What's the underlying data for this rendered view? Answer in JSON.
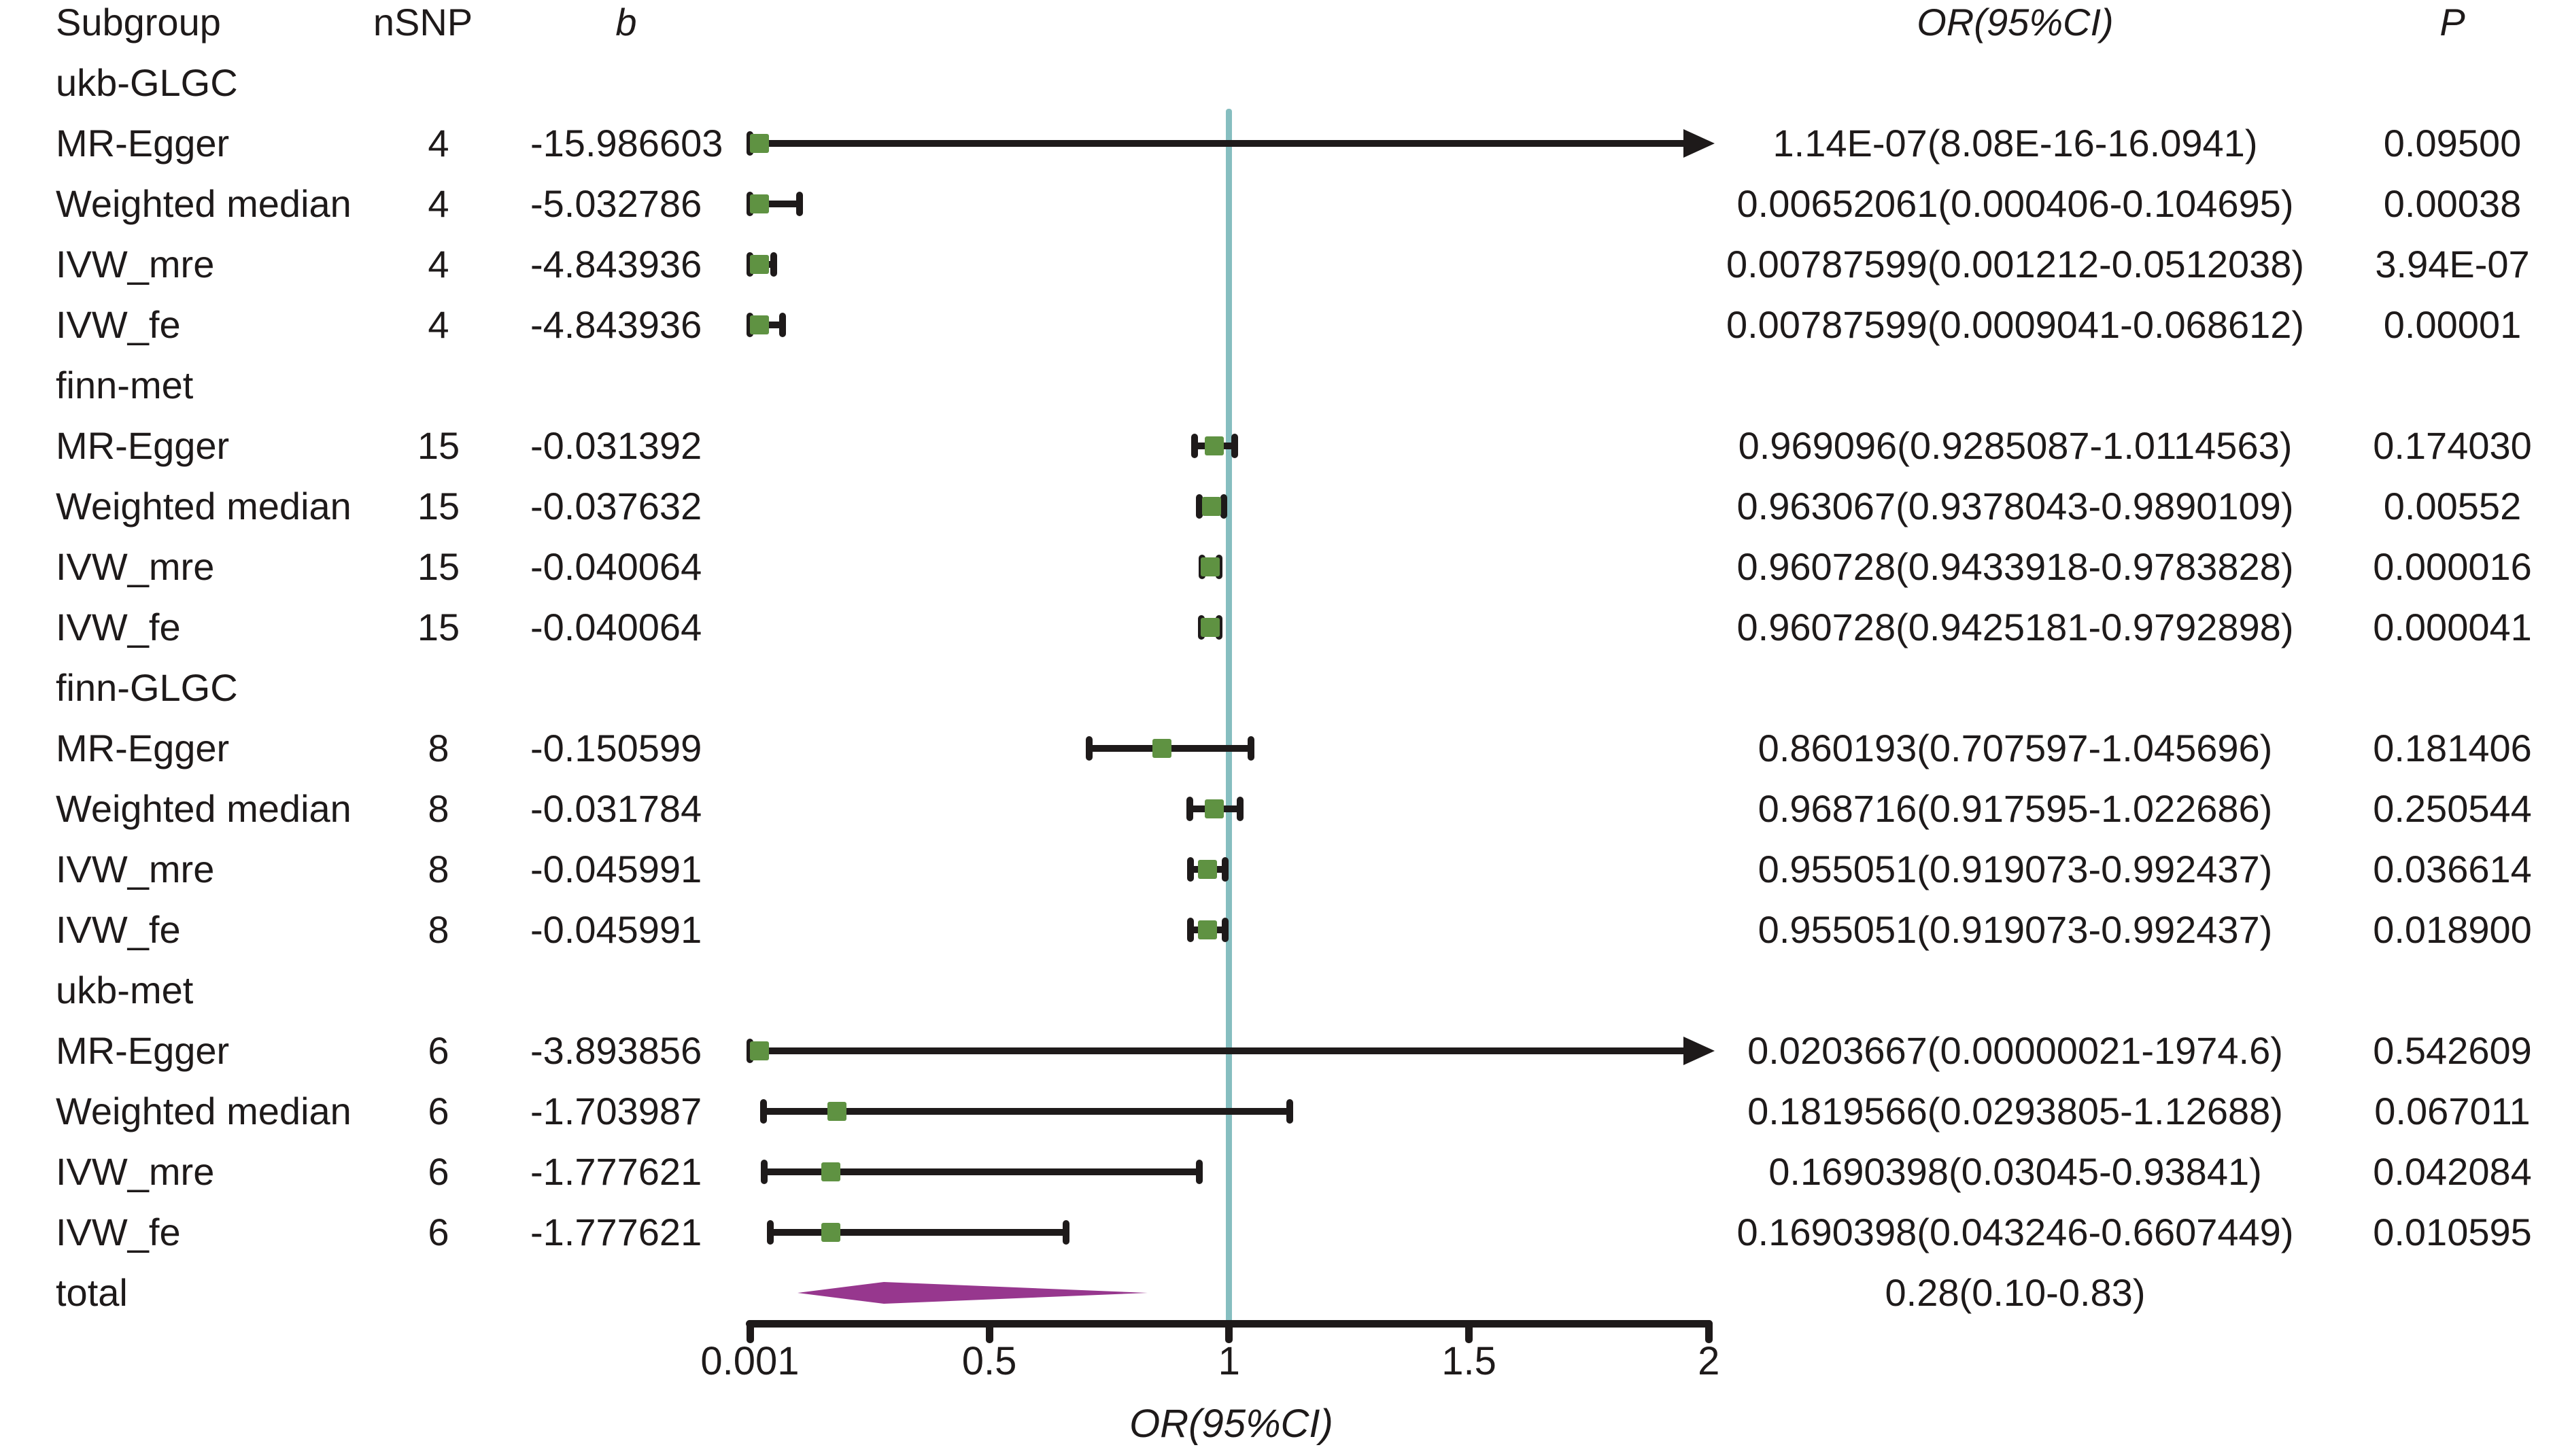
{
  "header": {
    "subgroup": "Subgroup",
    "nsnp": "nSNP",
    "b": "b",
    "or_ci": "OR(95%CI)",
    "p": "P"
  },
  "colors": {
    "text": "#1e1a1a",
    "line": "#1e1a1a",
    "marker_green": "#5f9242",
    "reference_teal": "#86bec0",
    "diamond_purple": "#97378e",
    "background": "#ffffff"
  },
  "chart_data": {
    "type": "scatter",
    "variant": "forest-plot",
    "title": "",
    "xlabel": "OR(95%CI)",
    "x_range": [
      0.001,
      2
    ],
    "x_ticks": [
      {
        "value": 0.001,
        "label": "0.001"
      },
      {
        "value": 0.5,
        "label": "0.5"
      },
      {
        "value": 1,
        "label": "1"
      },
      {
        "value": 1.5,
        "label": "1.5"
      },
      {
        "value": 2,
        "label": "2"
      }
    ],
    "reference_line_x": 1,
    "grid": false,
    "legend": false,
    "rows": [
      {
        "kind": "group",
        "label": "ukb-GLGC"
      },
      {
        "kind": "row",
        "label": "MR-Egger",
        "nsnp": "4",
        "b": "-15.986603",
        "or_ci": "1.14E-07(8.08E-16-16.0941)",
        "p": "0.09500",
        "est": 1.14e-07,
        "lo": 8.08e-16,
        "hi": 16.0941
      },
      {
        "kind": "row",
        "label": "Weighted median",
        "nsnp": "4",
        "b": "-5.032786",
        "or_ci": "0.00652061(0.000406-0.104695)",
        "p": "0.00038",
        "est": 0.00652061,
        "lo": 0.000406,
        "hi": 0.104695
      },
      {
        "kind": "row",
        "label": "IVW_mre",
        "nsnp": "4",
        "b": "-4.843936",
        "or_ci": "0.00787599(0.001212-0.0512038)",
        "p": "3.94E-07",
        "est": 0.00787599,
        "lo": 0.001212,
        "hi": 0.0512038
      },
      {
        "kind": "row",
        "label": "IVW_fe",
        "nsnp": "4",
        "b": "-4.843936",
        "or_ci": "0.00787599(0.0009041-0.068612)",
        "p": "0.00001",
        "est": 0.00787599,
        "lo": 0.0009041,
        "hi": 0.068612
      },
      {
        "kind": "group",
        "label": "finn-met"
      },
      {
        "kind": "row",
        "label": "MR-Egger",
        "nsnp": "15",
        "b": "-0.031392",
        "or_ci": "0.969096(0.9285087-1.0114563)",
        "p": "0.174030",
        "est": 0.969096,
        "lo": 0.9285087,
        "hi": 1.0114563
      },
      {
        "kind": "row",
        "label": "Weighted median",
        "nsnp": "15",
        "b": "-0.037632",
        "or_ci": "0.963067(0.9378043-0.9890109)",
        "p": "0.00552",
        "est": 0.963067,
        "lo": 0.9378043,
        "hi": 0.9890109
      },
      {
        "kind": "row",
        "label": "IVW_mre",
        "nsnp": "15",
        "b": "-0.040064",
        "or_ci": "0.960728(0.9433918-0.9783828)",
        "p": "0.000016",
        "est": 0.960728,
        "lo": 0.9433918,
        "hi": 0.9783828
      },
      {
        "kind": "row",
        "label": "IVW_fe",
        "nsnp": "15",
        "b": "-0.040064",
        "or_ci": "0.960728(0.9425181-0.9792898)",
        "p": "0.000041",
        "est": 0.960728,
        "lo": 0.9425181,
        "hi": 0.9792898
      },
      {
        "kind": "group",
        "label": "finn-GLGC"
      },
      {
        "kind": "row",
        "label": "MR-Egger",
        "nsnp": "8",
        "b": "-0.150599",
        "or_ci": "0.860193(0.707597-1.045696)",
        "p": "0.181406",
        "est": 0.860193,
        "lo": 0.707597,
        "hi": 1.045696
      },
      {
        "kind": "row",
        "label": "Weighted median",
        "nsnp": "8",
        "b": "-0.031784",
        "or_ci": "0.968716(0.917595-1.022686)",
        "p": "0.250544",
        "est": 0.968716,
        "lo": 0.917595,
        "hi": 1.022686
      },
      {
        "kind": "row",
        "label": "IVW_mre",
        "nsnp": "8",
        "b": "-0.045991",
        "or_ci": "0.955051(0.919073-0.992437)",
        "p": "0.036614",
        "est": 0.955051,
        "lo": 0.919073,
        "hi": 0.992437
      },
      {
        "kind": "row",
        "label": "IVW_fe",
        "nsnp": "8",
        "b": "-0.045991",
        "or_ci": "0.955051(0.919073-0.992437)",
        "p": "0.018900",
        "est": 0.955051,
        "lo": 0.919073,
        "hi": 0.992437
      },
      {
        "kind": "group",
        "label": "ukb-met"
      },
      {
        "kind": "row",
        "label": "MR-Egger",
        "nsnp": "6",
        "b": "-3.893856",
        "or_ci": "0.0203667(0.00000021-1974.6)",
        "p": "0.542609",
        "est": 0.0203667,
        "lo": 2.1e-07,
        "hi": 1974.6
      },
      {
        "kind": "row",
        "label": "Weighted median",
        "nsnp": "6",
        "b": "-1.703987",
        "or_ci": "0.1819566(0.0293805-1.12688)",
        "p": "0.067011",
        "est": 0.1819566,
        "lo": 0.0293805,
        "hi": 1.12688
      },
      {
        "kind": "row",
        "label": "IVW_mre",
        "nsnp": "6",
        "b": "-1.777621",
        "or_ci": "0.1690398(0.03045-0.93841)",
        "p": "0.042084",
        "est": 0.1690398,
        "lo": 0.03045,
        "hi": 0.93841
      },
      {
        "kind": "row",
        "label": "IVW_fe",
        "nsnp": "6",
        "b": "-1.777621",
        "or_ci": "0.1690398(0.043246-0.6607449)",
        "p": "0.010595",
        "est": 0.1690398,
        "lo": 0.043246,
        "hi": 0.6607449
      },
      {
        "kind": "total",
        "label": "total",
        "or_ci": "0.28(0.10-0.83)",
        "est": 0.28,
        "lo": 0.1,
        "hi": 0.83
      }
    ]
  }
}
